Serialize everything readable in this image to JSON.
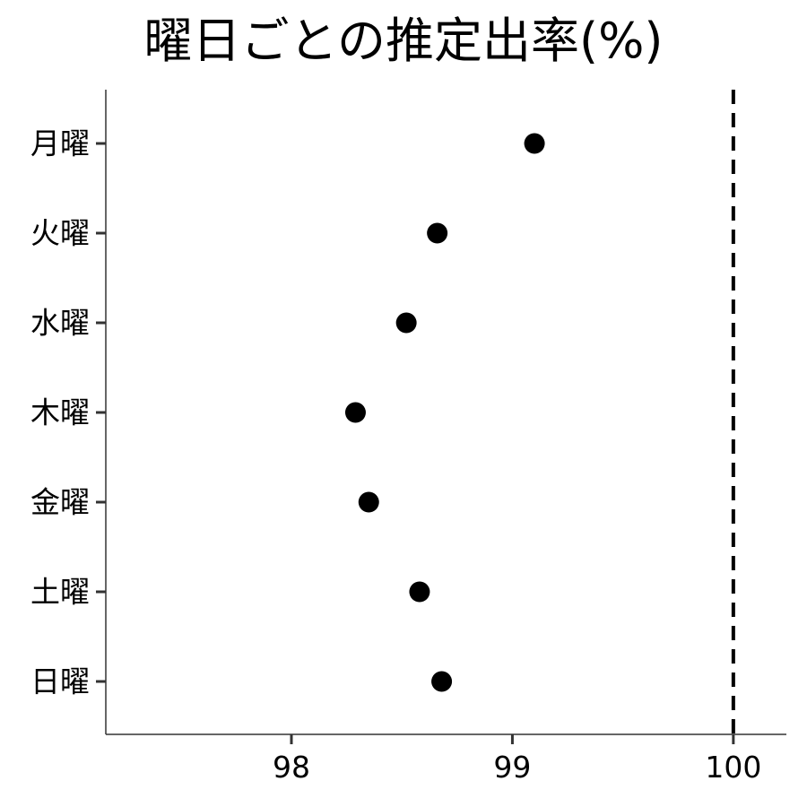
{
  "chart_data": {
    "type": "scatter",
    "title": "曜日ごとの推定出率(%)",
    "xlabel": "",
    "ylabel": "",
    "categories": [
      "月曜",
      "火曜",
      "水曜",
      "木曜",
      "金曜",
      "土曜",
      "日曜"
    ],
    "values": [
      99.1,
      98.66,
      98.52,
      98.29,
      98.35,
      98.58,
      98.68
    ],
    "xlim": [
      97.16,
      100.24
    ],
    "xticks": [
      "98",
      "99",
      "100"
    ],
    "reference_line": {
      "x": 100,
      "style": "dashed",
      "color": "#000000"
    },
    "grid": false,
    "legend": "none",
    "point_color": "#000000"
  }
}
